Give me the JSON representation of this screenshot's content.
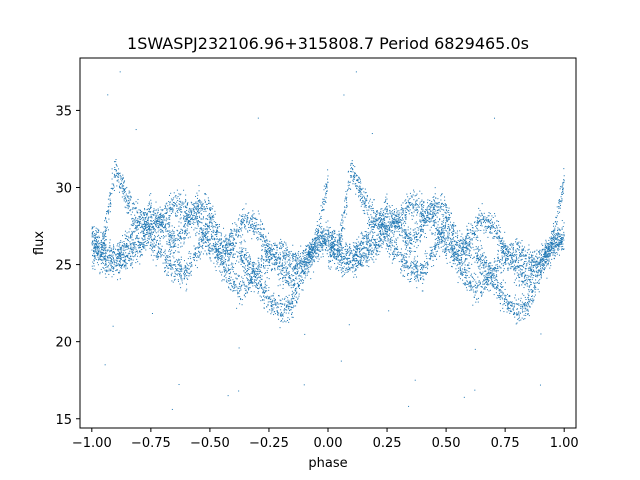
{
  "chart_data": {
    "type": "scatter",
    "title": "1SWASPJ232106.96+315808.7 Period 6829465.0s",
    "xlabel": "phase",
    "ylabel": "flux",
    "xlim": [
      -1.05,
      1.05
    ],
    "ylim": [
      14.4,
      38.4
    ],
    "xticks": [
      -1.0,
      -0.75,
      -0.5,
      -0.25,
      0.0,
      0.25,
      0.5,
      0.75,
      1.0
    ],
    "xtick_labels": [
      "−1.00",
      "−0.75",
      "−0.50",
      "−0.25",
      "0.00",
      "0.25",
      "0.50",
      "0.75",
      "1.00"
    ],
    "yticks": [
      15,
      20,
      25,
      30,
      35
    ],
    "ytick_labels": [
      "15",
      "20",
      "25",
      "30",
      "35"
    ],
    "grid": false,
    "marker_color": "#1f77b4",
    "phase_range": [
      -1.0,
      1.0
    ],
    "period_repeat": 1.0,
    "profile_phase": [
      0.0,
      0.05,
      0.1,
      0.15,
      0.2,
      0.25,
      0.3,
      0.35,
      0.4,
      0.45,
      0.5,
      0.55,
      0.6,
      0.65,
      0.7,
      0.75,
      0.8,
      0.85,
      0.9,
      0.95,
      1.0
    ],
    "track_a_flux": [
      25.3,
      26.5,
      31.2,
      29.2,
      28.0,
      26.8,
      25.5,
      24.8,
      24.4,
      26.0,
      27.5,
      25.0,
      23.8,
      23.5,
      24.5,
      25.5,
      26.0,
      25.2,
      25.0,
      26.5,
      30.5
    ],
    "track_b_flux": [
      27.0,
      26.0,
      25.5,
      26.5,
      27.5,
      28.5,
      27.5,
      26.5,
      27.5,
      28.8,
      28.5,
      26.5,
      25.8,
      25.5,
      24.0,
      22.8,
      21.8,
      22.5,
      24.5,
      26.0,
      27.0
    ],
    "track_c_flux": [
      26.5,
      25.2,
      24.8,
      25.5,
      26.2,
      27.2,
      28.0,
      29.0,
      28.5,
      27.8,
      26.0,
      25.5,
      26.8,
      28.0,
      27.5,
      26.0,
      24.5,
      24.0,
      25.5,
      26.5,
      26.5
    ],
    "scatter_sigma": 0.6,
    "outlier_flux": [
      17.2,
      16.8,
      18.5,
      21.0,
      22.0,
      19.5,
      33.5,
      34.5,
      37.5,
      16.5,
      15.8,
      20.5,
      17.5,
      36.0
    ]
  }
}
